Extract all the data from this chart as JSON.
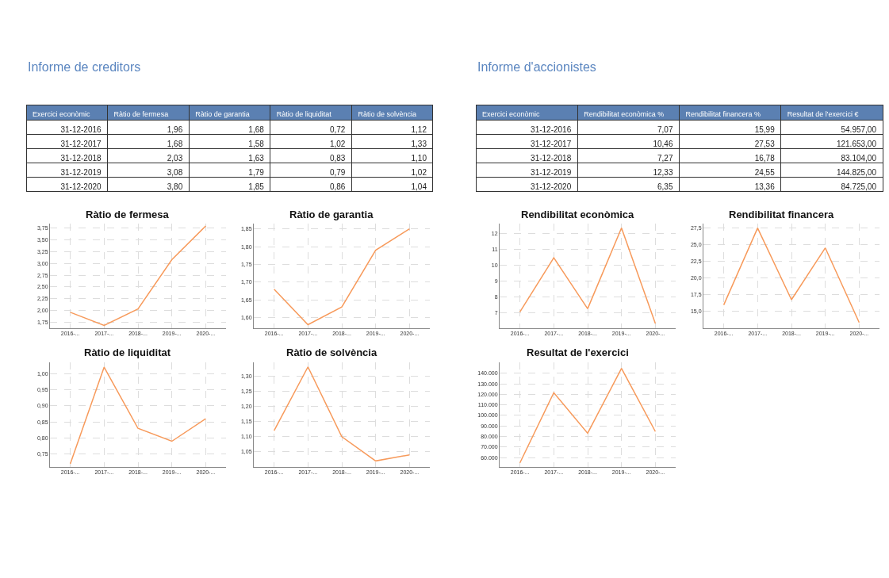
{
  "chart_data": [
    {
      "type": "other",
      "title": "Informe de creditors",
      "annotations": [
        "Exercici econòmic",
        "Ràtio de fermesa",
        "Ràtio de garantia",
        "Ràtio de liquiditat",
        "Ràtio de solvència",
        "31-12-2016",
        "1,96",
        "1,68",
        "0,72",
        "1,12",
        "31-12-2017",
        "1,68",
        "1,58",
        "1,02",
        "1,33",
        "31-12-2018",
        "2,03",
        "1,63",
        "0,83",
        "1,10",
        "31-12-2019",
        "3,08",
        "1,79",
        "0,79",
        "1,02",
        "31-12-2020",
        "3,80",
        "1,85",
        "0,86",
        "1,04"
      ]
    },
    {
      "type": "line",
      "title": "Ràtio de fermesa",
      "categories": [
        "2016-...",
        "2017-...",
        "2018-...",
        "2019-...",
        "2020-..."
      ],
      "values": [
        1.96,
        1.68,
        2.03,
        3.08,
        3.8
      ],
      "color": "#f79a5b",
      "ylim": [
        1.62,
        3.85
      ],
      "yticks": [
        {
          "value": 1.75,
          "label": "1,75"
        },
        {
          "value": 2.0,
          "label": "2,00"
        },
        {
          "value": 2.25,
          "label": "2,25"
        },
        {
          "value": 2.5,
          "label": "2,50"
        },
        {
          "value": 2.75,
          "label": "2,75"
        },
        {
          "value": 3.0,
          "label": "3,00"
        },
        {
          "value": 3.25,
          "label": "3,25"
        },
        {
          "value": 3.5,
          "label": "3,50"
        },
        {
          "value": 3.75,
          "label": "3,75"
        }
      ],
      "grid": true,
      "line_style": "solid",
      "marker": "none"
    },
    {
      "type": "line",
      "title": "Ràtio de garantia",
      "categories": [
        "2016-...",
        "2017-...",
        "2018-...",
        "2019-...",
        "2020-..."
      ],
      "values": [
        1.68,
        1.58,
        1.63,
        1.79,
        1.85
      ],
      "color": "#f79a5b",
      "ylim": [
        1.57,
        1.865
      ],
      "yticks": [
        {
          "value": 1.6,
          "label": "1,60"
        },
        {
          "value": 1.65,
          "label": "1,65"
        },
        {
          "value": 1.7,
          "label": "1,70"
        },
        {
          "value": 1.75,
          "label": "1,75"
        },
        {
          "value": 1.8,
          "label": "1,80"
        },
        {
          "value": 1.85,
          "label": "1,85"
        }
      ],
      "grid": true,
      "line_style": "solid",
      "marker": "none"
    },
    {
      "type": "line",
      "title": "Ràtio de liquiditat",
      "categories": [
        "2016-...",
        "2017-...",
        "2018-...",
        "2019-...",
        "2020-..."
      ],
      "values": [
        0.72,
        1.02,
        0.83,
        0.79,
        0.86
      ],
      "color": "#f79a5b",
      "ylim": [
        0.71,
        1.035
      ],
      "yticks": [
        {
          "value": 0.75,
          "label": "0,75"
        },
        {
          "value": 0.8,
          "label": "0,80"
        },
        {
          "value": 0.85,
          "label": "0,85"
        },
        {
          "value": 0.9,
          "label": "0,90"
        },
        {
          "value": 0.95,
          "label": "0,95"
        },
        {
          "value": 1.0,
          "label": "1,00"
        }
      ],
      "grid": true,
      "line_style": "solid",
      "marker": "none"
    },
    {
      "type": "line",
      "title": "Ràtio de solvència",
      "categories": [
        "2016-...",
        "2017-...",
        "2018-...",
        "2019-...",
        "2020-..."
      ],
      "values": [
        1.12,
        1.33,
        1.1,
        1.02,
        1.04
      ],
      "color": "#f79a5b",
      "ylim": [
        1.0,
        1.345
      ],
      "yticks": [
        {
          "value": 1.05,
          "label": "1,05"
        },
        {
          "value": 1.1,
          "label": "1,10"
        },
        {
          "value": 1.15,
          "label": "1,15"
        },
        {
          "value": 1.2,
          "label": "1,20"
        },
        {
          "value": 1.25,
          "label": "1,25"
        },
        {
          "value": 1.3,
          "label": "1,30"
        }
      ],
      "grid": true,
      "line_style": "solid",
      "marker": "none"
    },
    {
      "type": "other",
      "title": "Informe d'accionistes",
      "annotations": [
        "Exercici econòmic",
        "Rendibilitat econòmica %",
        "Rendibilitat financera %",
        "Resultat de l'exercici €",
        "31-12-2016",
        "7,07",
        "15,99",
        "54.957,00",
        "31-12-2017",
        "10,46",
        "27,53",
        "121.653,00",
        "31-12-2018",
        "7,27",
        "16,78",
        "83.104,00",
        "31-12-2019",
        "12,33",
        "24,55",
        "144.825,00",
        "31-12-2020",
        "6,35",
        "13,36",
        "84.725,00"
      ]
    },
    {
      "type": "line",
      "title": "Rendibilitat econòmica",
      "categories": [
        "2016-...",
        "2017-...",
        "2018-...",
        "2019-...",
        "2020-..."
      ],
      "values": [
        7.07,
        10.46,
        7.27,
        12.33,
        6.35
      ],
      "color": "#f79a5b",
      "ylim": [
        6.05,
        12.6
      ],
      "yticks": [
        7,
        8,
        9,
        10,
        11,
        12
      ],
      "grid": true,
      "line_style": "solid",
      "marker": "none"
    },
    {
      "type": "line",
      "title": "Rendibilitat financera",
      "categories": [
        "2016-...",
        "2017-...",
        "2018-...",
        "2019-...",
        "2020-..."
      ],
      "values": [
        15.99,
        27.53,
        16.78,
        24.55,
        13.36
      ],
      "color": "#f79a5b",
      "ylim": [
        12.5,
        28.2
      ],
      "yticks": [
        {
          "value": 15,
          "label": "15,0"
        },
        {
          "value": 17.5,
          "label": "17,5"
        },
        {
          "value": 20,
          "label": "20,0"
        },
        {
          "value": 22.5,
          "label": "22,5"
        },
        {
          "value": 25,
          "label": "25,0"
        },
        {
          "value": 27.5,
          "label": "27,5"
        }
      ],
      "grid": true,
      "line_style": "solid",
      "marker": "none"
    },
    {
      "type": "line",
      "title": "Resultat de l'exercici",
      "categories": [
        "2016-...",
        "2017-...",
        "2018-...",
        "2019-...",
        "2020-..."
      ],
      "values": [
        54957,
        121653,
        83104,
        144825,
        84725
      ],
      "color": "#f79a5b",
      "ylim": [
        51000,
        150500
      ],
      "yticks": [
        {
          "value": 60000,
          "label": "60.000"
        },
        {
          "value": 70000,
          "label": "70.000"
        },
        {
          "value": 80000,
          "label": "80.000"
        },
        {
          "value": 90000,
          "label": "90.000"
        },
        {
          "value": 100000,
          "label": "100.000"
        },
        {
          "value": 110000,
          "label": "110.000"
        },
        {
          "value": 120000,
          "label": "120.000"
        },
        {
          "value": 130000,
          "label": "130.000"
        },
        {
          "value": 140000,
          "label": "140.000"
        }
      ],
      "grid": true,
      "line_style": "solid",
      "marker": "none"
    }
  ]
}
